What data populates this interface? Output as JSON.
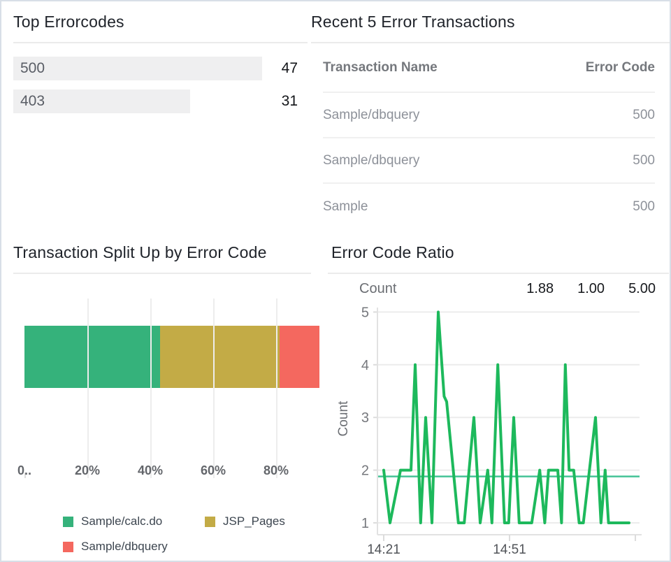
{
  "colors": {
    "green": "#35b27b",
    "gold": "#c3ab46",
    "red": "#f4685f",
    "line_green": "#1db95c",
    "avg_teal": "#45c397",
    "bar_bg": "#efeff0"
  },
  "top_errorcodes": {
    "title": "Top Errorcodes",
    "rows": [
      {
        "label": "500",
        "value": 47
      },
      {
        "label": "403",
        "value": 31
      }
    ]
  },
  "recent_transactions": {
    "title": "Recent 5 Error Transactions",
    "columns": {
      "name": "Transaction Name",
      "code": "Error Code"
    },
    "rows": [
      {
        "name": "Sample/dbquery",
        "code": "500"
      },
      {
        "name": "Sample/dbquery",
        "code": "500"
      },
      {
        "name": "Sample",
        "code": "500"
      }
    ]
  },
  "split_up": {
    "title": "Transaction Split Up by Error Code"
  },
  "error_ratio": {
    "title": "Error Code Ratio",
    "ylabel": "Count",
    "stats": {
      "avg": "1.88",
      "min": "1.00",
      "max": "5.00"
    }
  },
  "chart_data": [
    {
      "id": "top-errorcodes-bars",
      "type": "bar",
      "orientation": "horizontal",
      "title": "Top Errorcodes",
      "categories": [
        "500",
        "403"
      ],
      "values": [
        47,
        31
      ]
    },
    {
      "id": "transaction-split-by-error-code",
      "type": "bar",
      "stacked": true,
      "orientation": "horizontal",
      "title": "Transaction Split Up by Error Code",
      "series": [
        {
          "name": "Sample/calc.do",
          "value": 43,
          "color": "#35b27b"
        },
        {
          "name": "JSP_Pages",
          "value": 38,
          "color": "#c3ab46"
        },
        {
          "name": "Sample/dbquery",
          "value": 19,
          "color": "#f4685f"
        }
      ],
      "x_ticks": [
        "0..",
        "20%",
        "40%",
        "60%",
        "80%"
      ],
      "xlim": [
        0,
        100
      ],
      "grid": true,
      "legend_position": "bottom"
    },
    {
      "id": "error-code-ratio",
      "type": "line",
      "title": "Error Code Ratio",
      "ylabel": "Count",
      "ylim": [
        1,
        5
      ],
      "y_ticks": [
        1,
        2,
        3,
        4,
        5
      ],
      "x_ticks": [
        {
          "t": 0,
          "label": "14:21"
        },
        {
          "t": 30,
          "label": "14:51"
        },
        {
          "t": 60,
          "label": ""
        }
      ],
      "average": 1.88,
      "stats": {
        "avg": "1.88",
        "min": "1.00",
        "max": "5.00"
      },
      "grid": true,
      "points": [
        [
          0,
          2
        ],
        [
          1.5,
          1
        ],
        [
          4,
          2
        ],
        [
          6.5,
          2
        ],
        [
          7.5,
          4
        ],
        [
          8.8,
          1
        ],
        [
          10,
          3
        ],
        [
          11.5,
          1
        ],
        [
          13,
          5
        ],
        [
          13.6,
          4.3
        ],
        [
          14.4,
          3.4
        ],
        [
          15,
          3.3
        ],
        [
          17.8,
          1
        ],
        [
          19.2,
          1
        ],
        [
          21.5,
          3
        ],
        [
          23,
          1
        ],
        [
          24.8,
          2
        ],
        [
          25.8,
          1
        ],
        [
          27.2,
          4
        ],
        [
          28.8,
          1
        ],
        [
          29.8,
          1
        ],
        [
          31,
          3
        ],
        [
          32.3,
          1
        ],
        [
          35.3,
          1
        ],
        [
          37.2,
          2
        ],
        [
          38.4,
          1
        ],
        [
          39.3,
          2
        ],
        [
          41.5,
          2
        ],
        [
          42.4,
          1
        ],
        [
          43.3,
          4
        ],
        [
          44.2,
          2
        ],
        [
          45.3,
          2
        ],
        [
          46.6,
          1
        ],
        [
          47.6,
          1
        ],
        [
          50.5,
          3
        ],
        [
          51.8,
          1
        ],
        [
          52.8,
          2
        ],
        [
          53.6,
          1
        ],
        [
          58.5,
          1
        ]
      ]
    }
  ]
}
